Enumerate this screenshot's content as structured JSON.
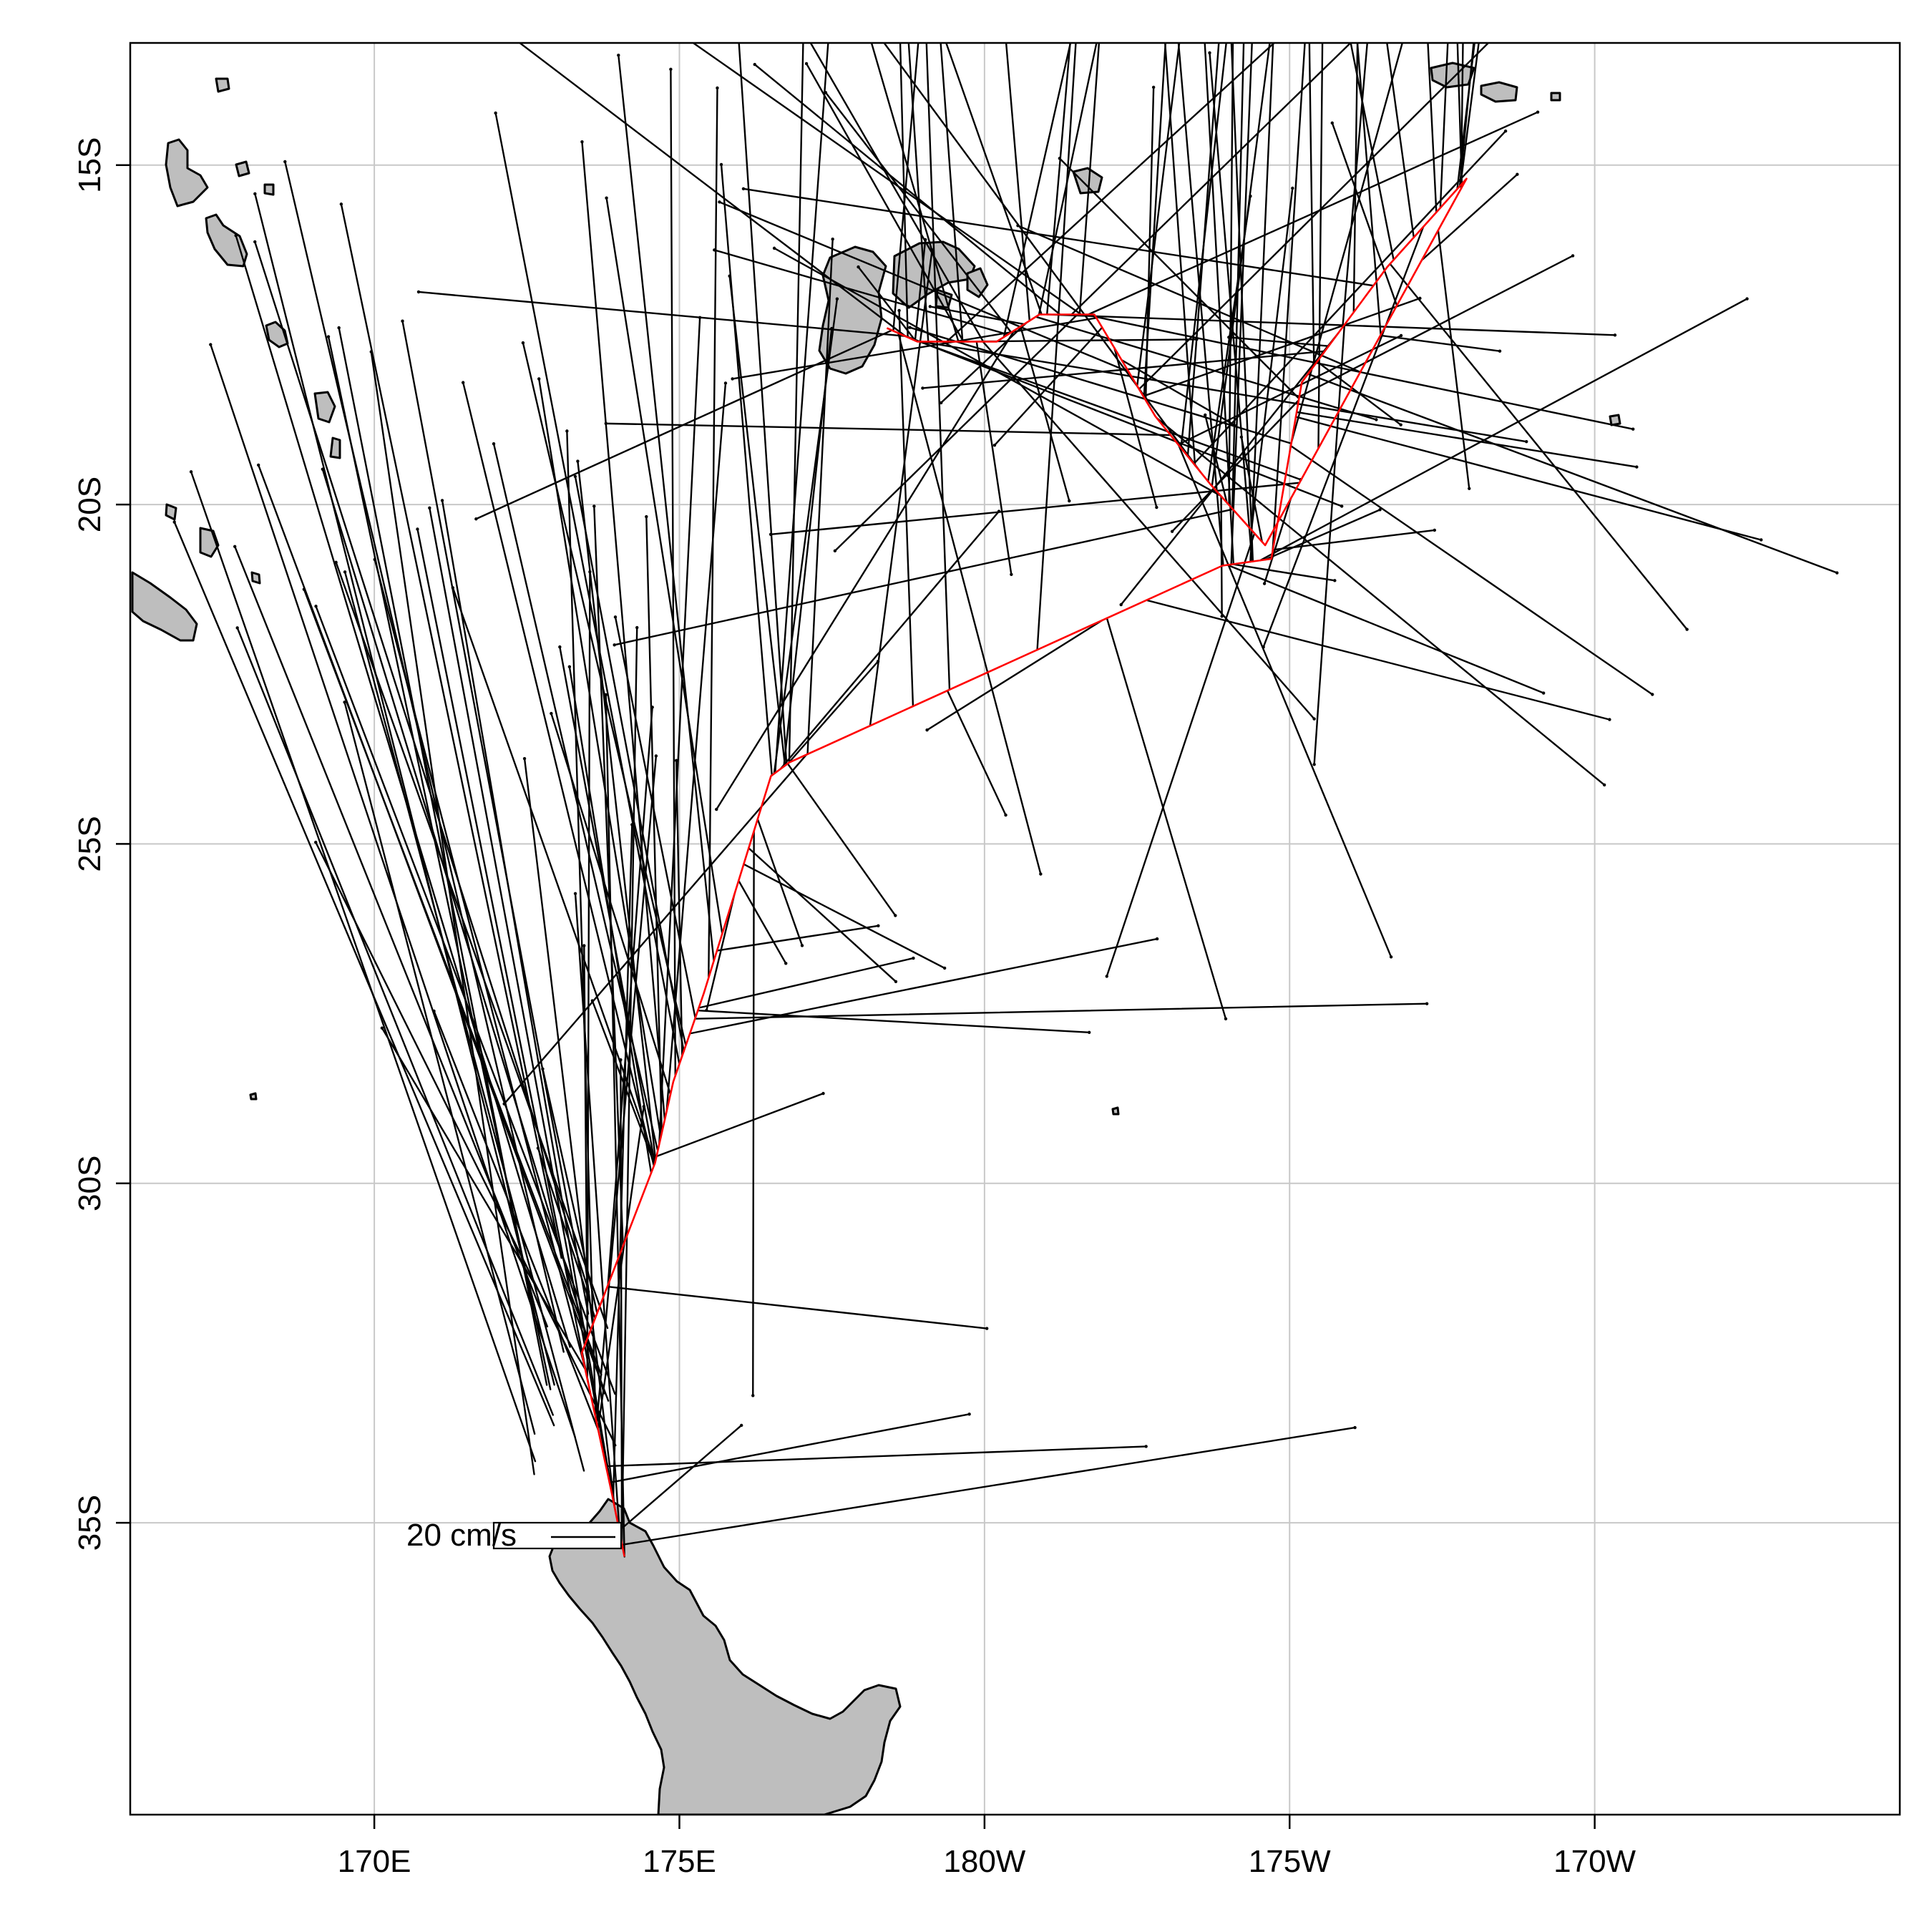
{
  "figure": {
    "x_axis": {
      "ticks": [
        {
          "lon": 170,
          "label": "170E"
        },
        {
          "lon": 175,
          "label": "175E"
        },
        {
          "lon": 180,
          "label": "180W"
        },
        {
          "lon": 185,
          "label": "175W"
        },
        {
          "lon": 190,
          "label": "170W"
        }
      ]
    },
    "y_axis": {
      "ticks": [
        {
          "lat": -15,
          "label": "15S"
        },
        {
          "lat": -20,
          "label": "20S"
        },
        {
          "lat": -25,
          "label": "25S"
        },
        {
          "lat": -30,
          "label": "30S"
        },
        {
          "lat": -35,
          "label": "35S"
        }
      ]
    },
    "legend": {
      "label": "20 cm/s"
    },
    "colors": {
      "land": "#bebebe",
      "coast": "#000000",
      "grid": "#c8c8c8",
      "vector": "#000000",
      "track": "#ff0000"
    }
  },
  "chart_data": {
    "type": "vector-map",
    "xlim": [
      166,
      195
    ],
    "ylim": [
      -39.3,
      -13.2
    ],
    "lon_ticks": [
      170,
      175,
      180,
      185,
      190
    ],
    "lat_ticks": [
      -15,
      -20,
      -25,
      -30,
      -35
    ],
    "legend_vector_cm_s": 20,
    "grid": true,
    "track_lonlat": [
      [
        174.1,
        -35.5
      ],
      [
        173.9,
        -34.6
      ],
      [
        173.4,
        -32.5
      ],
      [
        174.6,
        -29.7
      ],
      [
        174.9,
        -28.5
      ],
      [
        175.4,
        -27.2
      ],
      [
        176.5,
        -24.0
      ],
      [
        176.8,
        -23.8
      ],
      [
        183.9,
        -20.9
      ],
      [
        184.7,
        -20.8
      ],
      [
        185.2,
        -18.2
      ],
      [
        186.6,
        -16.5
      ],
      [
        187.9,
        -15.2
      ],
      [
        184.6,
        -20.6
      ],
      [
        183.7,
        -19.7
      ],
      [
        182.8,
        -18.7
      ],
      [
        181.8,
        -17.2
      ],
      [
        180.9,
        -17.2
      ],
      [
        180.2,
        -17.6
      ],
      [
        178.9,
        -17.6
      ],
      [
        178.4,
        -17.4
      ]
    ]
  }
}
